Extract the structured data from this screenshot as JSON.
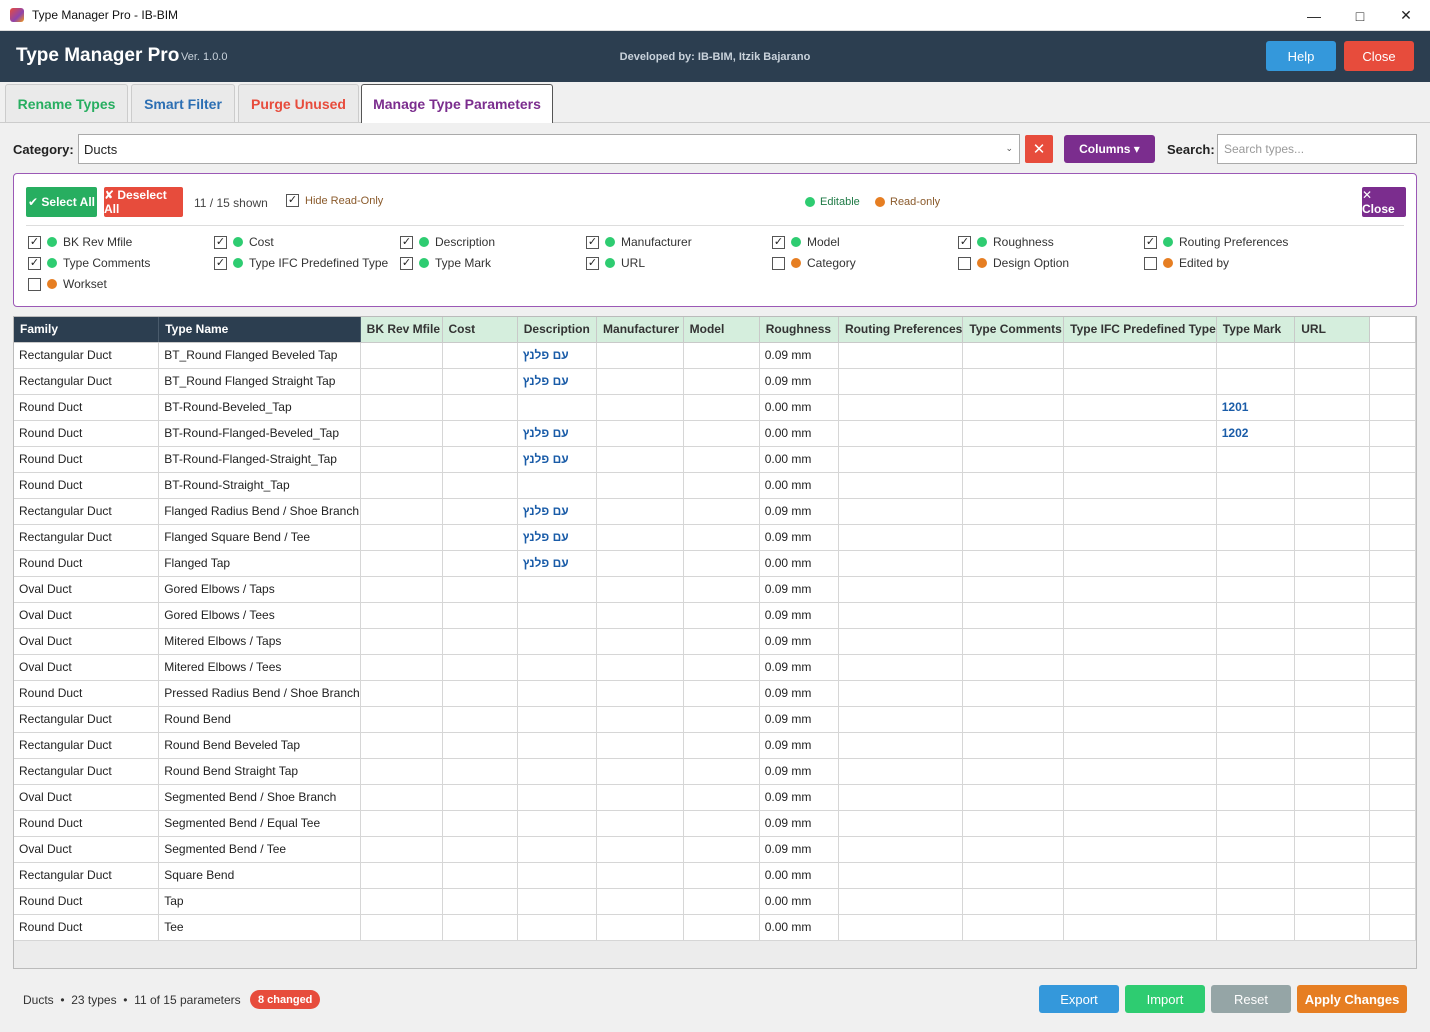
{
  "window": {
    "title": "Type Manager Pro - IB-BIM"
  },
  "header": {
    "title": "Type Manager Pro",
    "version": "Ver. 1.0.0",
    "developer": "Developed by: IB-BIM, Itzik Bajarano",
    "help_label": "Help",
    "close_label": "Close"
  },
  "tabs": [
    {
      "label": "Rename Types",
      "color": "#27ae60"
    },
    {
      "label": "Smart Filter",
      "color": "#2c6fb3"
    },
    {
      "label": "Purge Unused",
      "color": "#e74c3c"
    },
    {
      "label": "Manage Type Parameters",
      "color": "#7b2d8e",
      "active": true
    }
  ],
  "toolbar": {
    "category_label": "Category:",
    "category_value": "Ducts",
    "clear_icon": "close-icon",
    "columns_label": "Columns ▾",
    "search_label": "Search:",
    "search_placeholder": "Search types..."
  },
  "column_panel": {
    "select_all": "✔ Select All",
    "deselect_all": "✘ Deselect All",
    "shown": "11 / 15 shown",
    "hide_readonly": "Hide Read-Only",
    "legend_editable": "Editable",
    "legend_readonly": "Read-only",
    "close_label": "✕ Close",
    "editable_color": "#2ecc71",
    "readonly_color": "#e67e22",
    "options": [
      {
        "label": "BK Rev Mfile",
        "checked": true,
        "editable": true
      },
      {
        "label": "Cost",
        "checked": true,
        "editable": true
      },
      {
        "label": "Description",
        "checked": true,
        "editable": true
      },
      {
        "label": "Manufacturer",
        "checked": true,
        "editable": true
      },
      {
        "label": "Model",
        "checked": true,
        "editable": true
      },
      {
        "label": "Roughness",
        "checked": true,
        "editable": true
      },
      {
        "label": "Routing Preferences",
        "checked": true,
        "editable": true
      },
      {
        "label": "Type Comments",
        "checked": true,
        "editable": true
      },
      {
        "label": "Type IFC Predefined Type",
        "checked": true,
        "editable": true
      },
      {
        "label": "Type Mark",
        "checked": true,
        "editable": true
      },
      {
        "label": "URL",
        "checked": true,
        "editable": true
      },
      {
        "label": "Category",
        "checked": false,
        "editable": false
      },
      {
        "label": "Design Option",
        "checked": false,
        "editable": false
      },
      {
        "label": "Edited by",
        "checked": false,
        "editable": false
      },
      {
        "label": "Workset",
        "checked": false,
        "editable": false
      }
    ]
  },
  "table": {
    "columns": [
      "Family",
      "Type Name",
      "BK Rev Mfile",
      "Cost",
      "Description",
      "Manufacturer",
      "Model",
      "Roughness",
      "Routing Preferences",
      "Type Comments",
      "Type IFC Predefined Type",
      "Type Mark",
      "URL"
    ],
    "rows": [
      [
        "Rectangular Duct",
        "BT_Round Flanged Beveled Tap",
        "",
        "",
        "עם פלנץ",
        "",
        "",
        "0.09 mm",
        "",
        "",
        "",
        "",
        ""
      ],
      [
        "Rectangular Duct",
        "BT_Round Flanged Straight Tap",
        "",
        "",
        "עם פלנץ",
        "",
        "",
        "0.09 mm",
        "",
        "",
        "",
        "",
        ""
      ],
      [
        "Round Duct",
        "BT-Round-Beveled_Tap",
        "",
        "",
        "",
        "",
        "",
        "0.00 mm",
        "",
        "",
        "",
        "1201",
        ""
      ],
      [
        "Round Duct",
        "BT-Round-Flanged-Beveled_Tap",
        "",
        "",
        "עם פלנץ",
        "",
        "",
        "0.00 mm",
        "",
        "",
        "",
        "1202",
        ""
      ],
      [
        "Round Duct",
        "BT-Round-Flanged-Straight_Tap",
        "",
        "",
        "עם פלנץ",
        "",
        "",
        "0.00 mm",
        "",
        "",
        "",
        "",
        ""
      ],
      [
        "Round Duct",
        "BT-Round-Straight_Tap",
        "",
        "",
        "",
        "",
        "",
        "0.00 mm",
        "",
        "",
        "",
        "",
        ""
      ],
      [
        "Rectangular Duct",
        "Flanged Radius Bend / Shoe Branch",
        "",
        "",
        "עם פלנץ",
        "",
        "",
        "0.09 mm",
        "",
        "",
        "",
        "",
        ""
      ],
      [
        "Rectangular Duct",
        "Flanged Square Bend / Tee",
        "",
        "",
        "עם פלנץ",
        "",
        "",
        "0.09 mm",
        "",
        "",
        "",
        "",
        ""
      ],
      [
        "Round Duct",
        "Flanged Tap",
        "",
        "",
        "עם פלנץ",
        "",
        "",
        "0.00 mm",
        "",
        "",
        "",
        "",
        ""
      ],
      [
        "Oval Duct",
        "Gored Elbows / Taps",
        "",
        "",
        "",
        "",
        "",
        "0.09 mm",
        "",
        "",
        "",
        "",
        ""
      ],
      [
        "Oval Duct",
        "Gored Elbows / Tees",
        "",
        "",
        "",
        "",
        "",
        "0.09 mm",
        "",
        "",
        "",
        "",
        ""
      ],
      [
        "Oval Duct",
        "Mitered Elbows / Taps",
        "",
        "",
        "",
        "",
        "",
        "0.09 mm",
        "",
        "",
        "",
        "",
        ""
      ],
      [
        "Oval Duct",
        "Mitered Elbows / Tees",
        "",
        "",
        "",
        "",
        "",
        "0.09 mm",
        "",
        "",
        "",
        "",
        ""
      ],
      [
        "Round Duct",
        "Pressed Radius Bend / Shoe Branch",
        "",
        "",
        "",
        "",
        "",
        "0.09 mm",
        "",
        "",
        "",
        "",
        ""
      ],
      [
        "Rectangular Duct",
        "Round Bend",
        "",
        "",
        "",
        "",
        "",
        "0.09 mm",
        "",
        "",
        "",
        "",
        ""
      ],
      [
        "Rectangular Duct",
        "Round Bend Beveled Tap",
        "",
        "",
        "",
        "",
        "",
        "0.09 mm",
        "",
        "",
        "",
        "",
        ""
      ],
      [
        "Rectangular Duct",
        "Round Bend Straight Tap",
        "",
        "",
        "",
        "",
        "",
        "0.09 mm",
        "",
        "",
        "",
        "",
        ""
      ],
      [
        "Oval Duct",
        "Segmented Bend  / Shoe Branch",
        "",
        "",
        "",
        "",
        "",
        "0.09 mm",
        "",
        "",
        "",
        "",
        ""
      ],
      [
        "Round Duct",
        "Segmented Bend / Equal Tee",
        "",
        "",
        "",
        "",
        "",
        "0.09 mm",
        "",
        "",
        "",
        "",
        ""
      ],
      [
        "Oval Duct",
        "Segmented Bend / Tee",
        "",
        "",
        "",
        "",
        "",
        "0.09 mm",
        "",
        "",
        "",
        "",
        ""
      ],
      [
        "Rectangular Duct",
        "Square Bend",
        "",
        "",
        "",
        "",
        "",
        "0.00 mm",
        "",
        "",
        "",
        "",
        ""
      ],
      [
        "Round Duct",
        "Tap",
        "",
        "",
        "",
        "",
        "",
        "0.00 mm",
        "",
        "",
        "",
        "",
        ""
      ],
      [
        "Round Duct",
        "Tee",
        "",
        "",
        "",
        "",
        "",
        "0.00 mm",
        "",
        "",
        "",
        "",
        ""
      ]
    ]
  },
  "status": {
    "category": "Ducts",
    "types": "23 types",
    "params": "11 of 15 parameters",
    "changed": "8 changed"
  },
  "footer": {
    "export": "Export",
    "import": "Import",
    "reset": "Reset",
    "apply": "Apply Changes"
  }
}
